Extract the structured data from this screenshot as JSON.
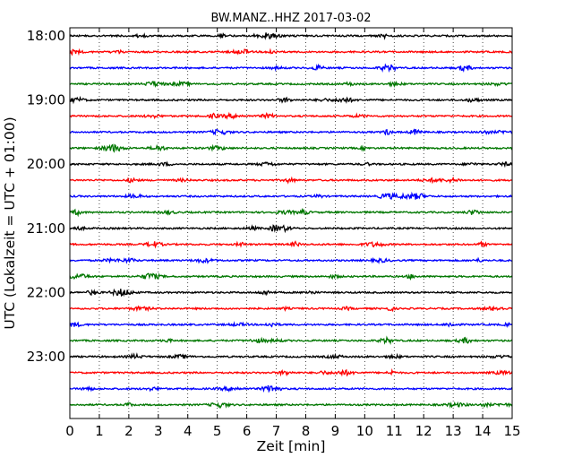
{
  "chart_data": {
    "type": "line",
    "title": "BW.MANZ..HHZ 2017-03-02",
    "xlabel": "Zeit  [min]",
    "ylabel": "UTC (Lokalzeit = UTC + 01:00)",
    "xlim": [
      0,
      15
    ],
    "x_ticks": [
      "0",
      "1",
      "2",
      "3",
      "4",
      "5",
      "6",
      "7",
      "8",
      "9",
      "10",
      "11",
      "12",
      "13",
      "14",
      "15"
    ],
    "y_ticks": [
      "18:00",
      "19:00",
      "20:00",
      "21:00",
      "22:00",
      "23:00"
    ],
    "minutes_per_trace": 15,
    "trace_colors": [
      "#000000",
      "#ff0000",
      "#0000ff",
      "#007700"
    ],
    "traces": [
      {
        "start": "18:00",
        "color": "#000000"
      },
      {
        "start": "18:15",
        "color": "#ff0000"
      },
      {
        "start": "18:30",
        "color": "#0000ff"
      },
      {
        "start": "18:45",
        "color": "#007700"
      },
      {
        "start": "19:00",
        "color": "#000000"
      },
      {
        "start": "19:15",
        "color": "#ff0000"
      },
      {
        "start": "19:30",
        "color": "#0000ff"
      },
      {
        "start": "19:45",
        "color": "#007700"
      },
      {
        "start": "20:00",
        "color": "#000000"
      },
      {
        "start": "20:15",
        "color": "#ff0000"
      },
      {
        "start": "20:30",
        "color": "#0000ff"
      },
      {
        "start": "20:45",
        "color": "#007700"
      },
      {
        "start": "21:00",
        "color": "#000000"
      },
      {
        "start": "21:15",
        "color": "#ff0000"
      },
      {
        "start": "21:30",
        "color": "#0000ff"
      },
      {
        "start": "21:45",
        "color": "#007700"
      },
      {
        "start": "22:00",
        "color": "#000000"
      },
      {
        "start": "22:15",
        "color": "#ff0000"
      },
      {
        "start": "22:30",
        "color": "#0000ff"
      },
      {
        "start": "22:45",
        "color": "#007700"
      },
      {
        "start": "23:00",
        "color": "#000000"
      },
      {
        "start": "23:15",
        "color": "#ff0000"
      },
      {
        "start": "23:30",
        "color": "#0000ff"
      },
      {
        "start": "23:45",
        "color": "#007700"
      }
    ],
    "grid": "vertical-dotted",
    "legend": "none"
  }
}
